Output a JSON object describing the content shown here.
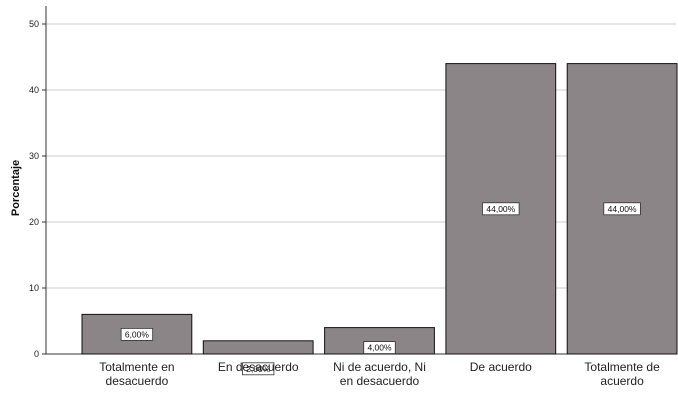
{
  "chart_data": {
    "type": "bar",
    "categories": [
      [
        "Totalmente en",
        "desacuerdo"
      ],
      [
        "En desacuerdo"
      ],
      [
        "Ni de acuerdo, Ni",
        "en desacuerdo"
      ],
      [
        "De acuerdo"
      ],
      [
        "Totalmente de",
        "acuerdo"
      ]
    ],
    "values": [
      6,
      2,
      4,
      44,
      44
    ],
    "data_labels": [
      "6,00%",
      "2,00%",
      "4,00%",
      "44,00%",
      "44,00%"
    ],
    "ylabel": "Porcentaje",
    "xlabel": "",
    "ylim": [
      0,
      50
    ],
    "yticks": [
      0,
      10,
      20,
      30,
      40,
      50
    ],
    "grid": true,
    "colors": {
      "bar": "#8b8587",
      "bar_stroke": "#111111",
      "grid": "#d6d6d6",
      "axis": "#333333"
    }
  }
}
